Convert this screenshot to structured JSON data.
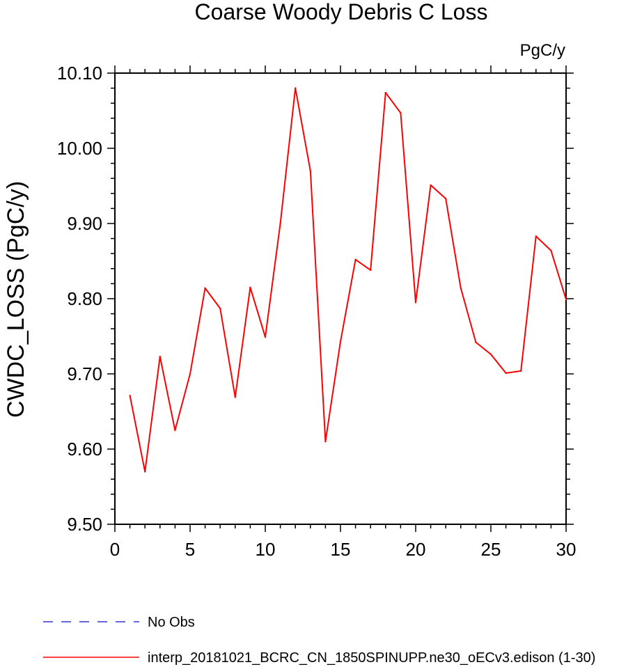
{
  "chart_data": {
    "type": "line",
    "title": "Coarse Woody Debris C Loss",
    "units_label": "PgC/y",
    "ylabel": "CWDC_LOSS  (PgC/y)",
    "xlabel": "",
    "xlim": [
      0,
      30
    ],
    "ylim": [
      9.5,
      10.1
    ],
    "x_ticks": [
      0,
      5,
      10,
      15,
      20,
      25,
      30
    ],
    "x_tick_labels": [
      "0",
      "5",
      "10",
      "15",
      "20",
      "25",
      "30"
    ],
    "y_ticks": [
      9.5,
      9.6,
      9.7,
      9.8,
      9.9,
      10.0,
      10.1
    ],
    "y_tick_labels": [
      "9.50",
      "9.60",
      "9.70",
      "9.80",
      "9.90",
      "10.00",
      "10.10"
    ],
    "grid": false,
    "legend_position": "bottom",
    "series": [
      {
        "name": "interp_20181021_BCRC_CN_1850SPINUPP.ne30_oECv3.edison (1-30)",
        "color": "#ff0000",
        "dash": "solid",
        "x": [
          1,
          2,
          3,
          4,
          5,
          6,
          7,
          8,
          9,
          10,
          11,
          12,
          13,
          14,
          15,
          16,
          17,
          18,
          19,
          20,
          21,
          22,
          23,
          24,
          25,
          26,
          27,
          28,
          29,
          30
        ],
        "y": [
          9.671,
          9.57,
          9.723,
          9.625,
          9.7,
          9.814,
          9.787,
          9.669,
          9.815,
          9.749,
          9.9,
          10.08,
          9.97,
          9.61,
          9.743,
          9.852,
          9.838,
          10.074,
          10.047,
          9.795,
          9.951,
          9.933,
          9.814,
          9.742,
          9.726,
          9.701,
          9.704,
          9.883,
          9.864,
          9.799
        ]
      }
    ],
    "legend": [
      {
        "label": "No Obs",
        "color": "#3333cc",
        "dash": "dashed"
      },
      {
        "label": "interp_20181021_BCRC_CN_1850SPINUPP.ne30_oECv3.edison (1-30)",
        "color": "#ff0000",
        "dash": "solid"
      }
    ]
  }
}
